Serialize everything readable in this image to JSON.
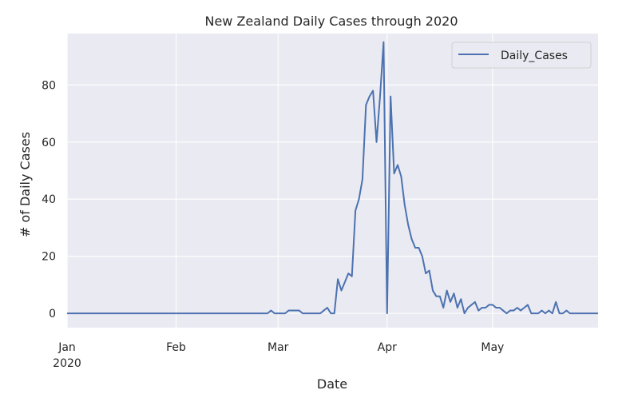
{
  "chart_data": {
    "type": "line",
    "title": "New Zealand Daily Cases through 2020",
    "xlabel": "Date",
    "ylabel": "# of Daily Cases",
    "x_start": "2020-01-01",
    "x_end": "2020-05-31",
    "xlim": [
      "2020-01-01",
      "2020-05-31"
    ],
    "ylim": [
      -5,
      98
    ],
    "grid": true,
    "legend_position": "top-right",
    "x_ticks": [
      {
        "date": "2020-01-01",
        "label": "Jan",
        "sublabel": "2020"
      },
      {
        "date": "2020-02-01",
        "label": "Feb",
        "sublabel": ""
      },
      {
        "date": "2020-03-01",
        "label": "Mar",
        "sublabel": ""
      },
      {
        "date": "2020-04-01",
        "label": "Apr",
        "sublabel": ""
      },
      {
        "date": "2020-05-01",
        "label": "May",
        "sublabel": ""
      }
    ],
    "y_ticks": [
      0,
      20,
      40,
      60,
      80
    ],
    "colors": {
      "background": "#eaeaf2",
      "grid": "#ffffff",
      "line": "#4c72b0"
    },
    "series": [
      {
        "name": "Daily_Cases",
        "color": "#4c72b0",
        "points": [
          [
            "2020-01-01",
            0
          ],
          [
            "2020-02-27",
            0
          ],
          [
            "2020-02-28",
            1
          ],
          [
            "2020-02-29",
            0
          ],
          [
            "2020-03-01",
            0
          ],
          [
            "2020-03-02",
            0
          ],
          [
            "2020-03-03",
            0
          ],
          [
            "2020-03-04",
            1
          ],
          [
            "2020-03-05",
            1
          ],
          [
            "2020-03-06",
            1
          ],
          [
            "2020-03-07",
            1
          ],
          [
            "2020-03-08",
            0
          ],
          [
            "2020-03-09",
            0
          ],
          [
            "2020-03-10",
            0
          ],
          [
            "2020-03-11",
            0
          ],
          [
            "2020-03-12",
            0
          ],
          [
            "2020-03-13",
            0
          ],
          [
            "2020-03-14",
            1
          ],
          [
            "2020-03-15",
            2
          ],
          [
            "2020-03-16",
            0
          ],
          [
            "2020-03-17",
            0
          ],
          [
            "2020-03-18",
            12
          ],
          [
            "2020-03-19",
            8
          ],
          [
            "2020-03-20",
            11
          ],
          [
            "2020-03-21",
            14
          ],
          [
            "2020-03-22",
            13
          ],
          [
            "2020-03-23",
            36
          ],
          [
            "2020-03-24",
            40
          ],
          [
            "2020-03-25",
            47
          ],
          [
            "2020-03-26",
            73
          ],
          [
            "2020-03-27",
            76
          ],
          [
            "2020-03-28",
            78
          ],
          [
            "2020-03-29",
            60
          ],
          [
            "2020-03-30",
            76
          ],
          [
            "2020-03-31",
            95
          ],
          [
            "2020-04-01",
            0
          ],
          [
            "2020-04-02",
            76
          ],
          [
            "2020-04-03",
            49
          ],
          [
            "2020-04-04",
            52
          ],
          [
            "2020-04-05",
            48
          ],
          [
            "2020-04-06",
            38
          ],
          [
            "2020-04-07",
            31
          ],
          [
            "2020-04-08",
            26
          ],
          [
            "2020-04-09",
            23
          ],
          [
            "2020-04-10",
            23
          ],
          [
            "2020-04-11",
            20
          ],
          [
            "2020-04-12",
            14
          ],
          [
            "2020-04-13",
            15
          ],
          [
            "2020-04-14",
            8
          ],
          [
            "2020-04-15",
            6
          ],
          [
            "2020-04-16",
            6
          ],
          [
            "2020-04-17",
            2
          ],
          [
            "2020-04-18",
            8
          ],
          [
            "2020-04-19",
            4
          ],
          [
            "2020-04-20",
            7
          ],
          [
            "2020-04-21",
            2
          ],
          [
            "2020-04-22",
            5
          ],
          [
            "2020-04-23",
            0
          ],
          [
            "2020-04-24",
            2
          ],
          [
            "2020-04-25",
            3
          ],
          [
            "2020-04-26",
            4
          ],
          [
            "2020-04-27",
            1
          ],
          [
            "2020-04-28",
            2
          ],
          [
            "2020-04-29",
            2
          ],
          [
            "2020-04-30",
            3
          ],
          [
            "2020-05-01",
            3
          ],
          [
            "2020-05-02",
            2
          ],
          [
            "2020-05-03",
            2
          ],
          [
            "2020-05-04",
            1
          ],
          [
            "2020-05-05",
            0
          ],
          [
            "2020-05-06",
            1
          ],
          [
            "2020-05-07",
            1
          ],
          [
            "2020-05-08",
            2
          ],
          [
            "2020-05-09",
            1
          ],
          [
            "2020-05-10",
            2
          ],
          [
            "2020-05-11",
            3
          ],
          [
            "2020-05-12",
            0
          ],
          [
            "2020-05-13",
            0
          ],
          [
            "2020-05-14",
            0
          ],
          [
            "2020-05-15",
            1
          ],
          [
            "2020-05-16",
            0
          ],
          [
            "2020-05-17",
            1
          ],
          [
            "2020-05-18",
            0
          ],
          [
            "2020-05-19",
            4
          ],
          [
            "2020-05-20",
            0
          ],
          [
            "2020-05-21",
            0
          ],
          [
            "2020-05-22",
            1
          ],
          [
            "2020-05-23",
            0
          ],
          [
            "2020-05-24",
            0
          ],
          [
            "2020-05-25",
            0
          ],
          [
            "2020-05-26",
            0
          ],
          [
            "2020-05-27",
            0
          ],
          [
            "2020-05-28",
            0
          ],
          [
            "2020-05-29",
            0
          ],
          [
            "2020-05-30",
            0
          ],
          [
            "2020-05-31",
            0
          ]
        ]
      }
    ]
  }
}
